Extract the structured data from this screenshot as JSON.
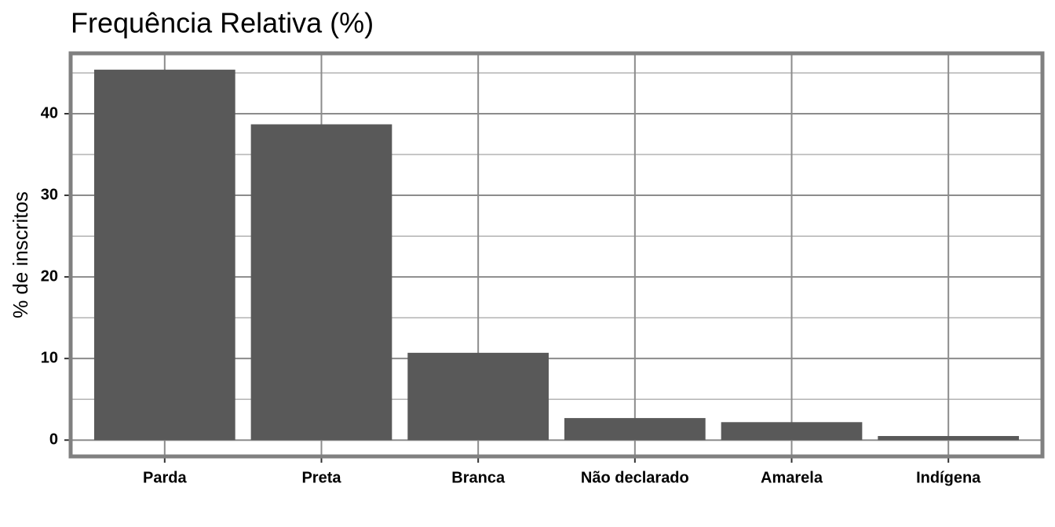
{
  "chart_data": {
    "type": "bar",
    "title": "Frequência Relativa (%)",
    "y_label": "% de inscritos",
    "categories": [
      "Parda",
      "Preta",
      "Branca",
      "Não declarado",
      "Amarela",
      "Indígena"
    ],
    "values": [
      45.4,
      38.7,
      10.7,
      2.7,
      2.2,
      0.5
    ],
    "color": "#595959",
    "ylim": [
      -2.0,
      47.4
    ],
    "yticks": [
      0,
      10,
      20,
      30,
      40
    ],
    "grid": true
  }
}
